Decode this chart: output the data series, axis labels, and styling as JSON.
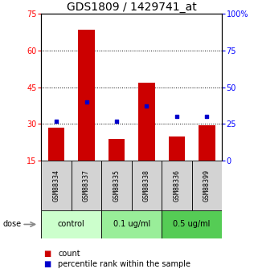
{
  "title": "GDS1809 / 1429741_at",
  "samples": [
    "GSM88334",
    "GSM88337",
    "GSM88335",
    "GSM88338",
    "GSM88336",
    "GSM88399"
  ],
  "bar_values": [
    28.5,
    68.5,
    24.0,
    47.0,
    25.0,
    29.5
  ],
  "bar_bottom": 15,
  "blue_values_pct": [
    27,
    40,
    27,
    37,
    30,
    30
  ],
  "left_ylim": [
    15,
    75
  ],
  "right_ylim": [
    0,
    100
  ],
  "left_ticks": [
    15,
    30,
    45,
    60,
    75
  ],
  "right_ticks": [
    0,
    25,
    50,
    75,
    100
  ],
  "right_tick_labels": [
    "0",
    "25",
    "50",
    "75",
    "100%"
  ],
  "bar_color": "#cc0000",
  "blue_color": "#0000cc",
  "sample_bg_color": "#d3d3d3",
  "bar_width": 0.55,
  "group_labels": [
    "control",
    "0.1 ug/ml",
    "0.5 ug/ml"
  ],
  "group_colors": [
    "#ccffcc",
    "#99ee99",
    "#55cc55"
  ],
  "legend_count_label": "count",
  "legend_pct_label": "percentile rank within the sample",
  "dose_label": "dose",
  "title_fontsize": 10,
  "tick_fontsize": 7,
  "sample_fontsize": 6,
  "group_fontsize": 7,
  "legend_fontsize": 7
}
